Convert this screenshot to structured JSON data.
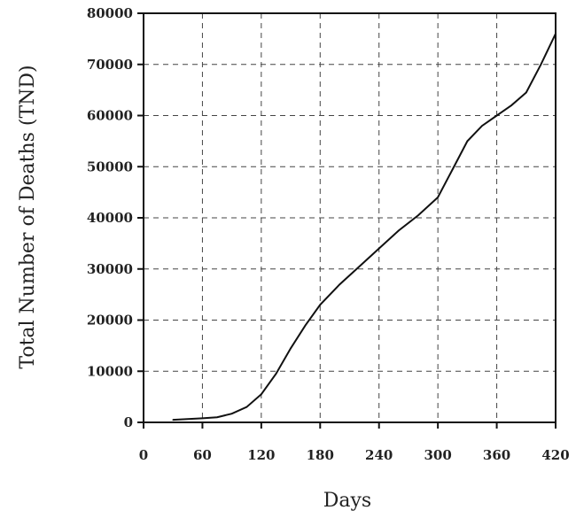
{
  "chart_data": {
    "type": "line",
    "xlabel": "Days",
    "ylabel": "Total Number of Deaths (TND)",
    "xlim": [
      0,
      420
    ],
    "ylim": [
      0,
      80000
    ],
    "x_ticks": [
      0,
      60,
      120,
      180,
      240,
      300,
      360,
      420
    ],
    "y_ticks": [
      0,
      10000,
      20000,
      30000,
      40000,
      50000,
      60000,
      70000,
      80000
    ],
    "grid": true,
    "series": [
      {
        "x": [
          30,
          60,
          75,
          90,
          105,
          120,
          135,
          150,
          165,
          180,
          200,
          220,
          240,
          260,
          280,
          300,
          315,
          330,
          345,
          360,
          375,
          390,
          405,
          420
        ],
        "values": [
          500,
          800,
          1000,
          1700,
          3000,
          5500,
          9500,
          14500,
          19000,
          23000,
          27000,
          30500,
          34000,
          37500,
          40500,
          44000,
          49500,
          55000,
          58000,
          60000,
          62000,
          64500,
          70000,
          76000
        ]
      }
    ]
  }
}
